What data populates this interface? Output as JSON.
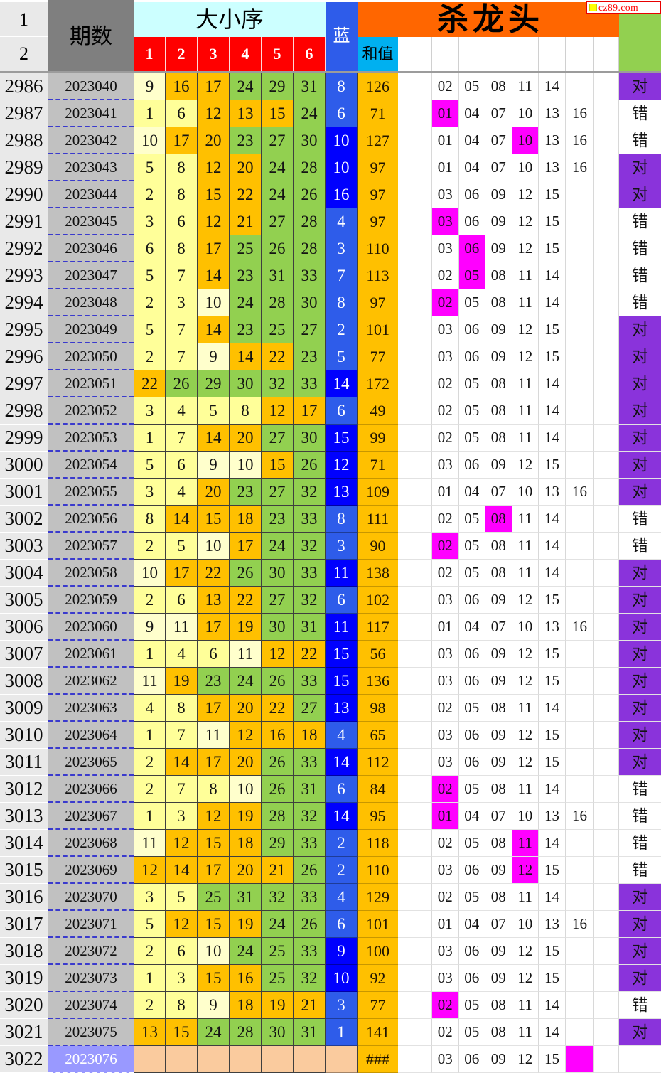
{
  "logo": {
    "text": "cz89.com"
  },
  "header": {
    "corner_row1": "1",
    "corner_row2": "2",
    "period": "期数",
    "size_order": "大小序",
    "ball_cols": [
      "1",
      "2",
      "3",
      "4",
      "5",
      "6"
    ],
    "blue": "蓝",
    "sum": "和值",
    "kill": "杀龙头"
  },
  "labels": {
    "correct": "对",
    "wrong": "错",
    "overflow": "###"
  },
  "colors": {
    "ball_small": "#FFFF99",
    "ball_small2": "#FFFFCC",
    "ball_mid": "#FFC000",
    "ball_big": "#92D050",
    "blue_small": "#2E5CEA",
    "blue_big": "#0000FE",
    "sum_bg": "#FFC000",
    "magenta": "#FF00FF",
    "purple": "#8A33DB",
    "banner_orange": "#FF6600",
    "size_cyan": "#CCFFFF",
    "sum_cyan": "#00B0F0",
    "col_red": "#FF0000",
    "header_gray": "#7F7F7F",
    "period_gray": "#C1C1C1",
    "index_gray": "#E9E9E9",
    "pending_peach": "#FACB9E",
    "pending_period": "#9999FF",
    "green_cell": "#92D050",
    "logo_red": "#EE0000",
    "logo_yellow": "#FFFF00"
  },
  "rows": [
    {
      "idx": "2986",
      "period": "2023040",
      "balls": [
        9,
        16,
        17,
        24,
        29,
        31
      ],
      "blue": 8,
      "sum": "126",
      "kill": [
        "02",
        "05",
        "08",
        "11",
        "14"
      ],
      "hl": -1,
      "result": "对"
    },
    {
      "idx": "2987",
      "period": "2023041",
      "balls": [
        1,
        6,
        12,
        13,
        15,
        24
      ],
      "blue": 6,
      "sum": "71",
      "kill": [
        "01",
        "04",
        "07",
        "10",
        "13",
        "16"
      ],
      "hl": 0,
      "result": "错"
    },
    {
      "idx": "2988",
      "period": "2023042",
      "balls": [
        10,
        17,
        20,
        23,
        27,
        30
      ],
      "blue": 10,
      "sum": "127",
      "kill": [
        "01",
        "04",
        "07",
        "10",
        "13",
        "16"
      ],
      "hl": 3,
      "result": "错"
    },
    {
      "idx": "2989",
      "period": "2023043",
      "balls": [
        5,
        8,
        12,
        20,
        24,
        28
      ],
      "blue": 10,
      "sum": "97",
      "kill": [
        "01",
        "04",
        "07",
        "10",
        "13",
        "16"
      ],
      "hl": -1,
      "result": "对"
    },
    {
      "idx": "2990",
      "period": "2023044",
      "balls": [
        2,
        8,
        15,
        22,
        24,
        26
      ],
      "blue": 16,
      "sum": "97",
      "kill": [
        "03",
        "06",
        "09",
        "12",
        "15"
      ],
      "hl": -1,
      "result": "对"
    },
    {
      "idx": "2991",
      "period": "2023045",
      "balls": [
        3,
        6,
        12,
        21,
        27,
        28
      ],
      "blue": 4,
      "sum": "97",
      "kill": [
        "03",
        "06",
        "09",
        "12",
        "15"
      ],
      "hl": 0,
      "result": "错"
    },
    {
      "idx": "2992",
      "period": "2023046",
      "balls": [
        6,
        8,
        17,
        25,
        26,
        28
      ],
      "blue": 3,
      "sum": "110",
      "kill": [
        "03",
        "06",
        "09",
        "12",
        "15"
      ],
      "hl": 1,
      "result": "错"
    },
    {
      "idx": "2993",
      "period": "2023047",
      "balls": [
        5,
        7,
        14,
        23,
        31,
        33
      ],
      "blue": 7,
      "sum": "113",
      "kill": [
        "02",
        "05",
        "08",
        "11",
        "14"
      ],
      "hl": 1,
      "result": "错"
    },
    {
      "idx": "2994",
      "period": "2023048",
      "balls": [
        2,
        3,
        10,
        24,
        28,
        30
      ],
      "blue": 8,
      "sum": "97",
      "kill": [
        "02",
        "05",
        "08",
        "11",
        "14"
      ],
      "hl": 0,
      "result": "错"
    },
    {
      "idx": "2995",
      "period": "2023049",
      "balls": [
        5,
        7,
        14,
        23,
        25,
        27
      ],
      "blue": 2,
      "sum": "101",
      "kill": [
        "03",
        "06",
        "09",
        "12",
        "15"
      ],
      "hl": -1,
      "result": "对"
    },
    {
      "idx": "2996",
      "period": "2023050",
      "balls": [
        2,
        7,
        9,
        14,
        22,
        23
      ],
      "blue": 5,
      "sum": "77",
      "kill": [
        "03",
        "06",
        "09",
        "12",
        "15"
      ],
      "hl": -1,
      "result": "对"
    },
    {
      "idx": "2997",
      "period": "2023051",
      "balls": [
        22,
        26,
        29,
        30,
        32,
        33
      ],
      "blue": 14,
      "sum": "172",
      "kill": [
        "02",
        "05",
        "08",
        "11",
        "14"
      ],
      "hl": -1,
      "result": "对"
    },
    {
      "idx": "2998",
      "period": "2023052",
      "balls": [
        3,
        4,
        5,
        8,
        12,
        17
      ],
      "blue": 6,
      "sum": "49",
      "kill": [
        "02",
        "05",
        "08",
        "11",
        "14"
      ],
      "hl": -1,
      "result": "对"
    },
    {
      "idx": "2999",
      "period": "2023053",
      "balls": [
        1,
        7,
        14,
        20,
        27,
        30
      ],
      "blue": 15,
      "sum": "99",
      "kill": [
        "02",
        "05",
        "08",
        "11",
        "14"
      ],
      "hl": -1,
      "result": "对"
    },
    {
      "idx": "3000",
      "period": "2023054",
      "balls": [
        5,
        6,
        9,
        10,
        15,
        26
      ],
      "blue": 12,
      "sum": "71",
      "kill": [
        "03",
        "06",
        "09",
        "12",
        "15"
      ],
      "hl": -1,
      "result": "对"
    },
    {
      "idx": "3001",
      "period": "2023055",
      "balls": [
        3,
        4,
        20,
        23,
        27,
        32
      ],
      "blue": 13,
      "sum": "109",
      "kill": [
        "01",
        "04",
        "07",
        "10",
        "13",
        "16"
      ],
      "hl": -1,
      "result": "对"
    },
    {
      "idx": "3002",
      "period": "2023056",
      "balls": [
        8,
        14,
        15,
        18,
        23,
        33
      ],
      "blue": 8,
      "sum": "111",
      "kill": [
        "02",
        "05",
        "08",
        "11",
        "14"
      ],
      "hl": 2,
      "result": "错"
    },
    {
      "idx": "3003",
      "period": "2023057",
      "balls": [
        2,
        5,
        10,
        17,
        24,
        32
      ],
      "blue": 3,
      "sum": "90",
      "kill": [
        "02",
        "05",
        "08",
        "11",
        "14"
      ],
      "hl": 0,
      "result": "错"
    },
    {
      "idx": "3004",
      "period": "2023058",
      "balls": [
        10,
        17,
        22,
        26,
        30,
        33
      ],
      "blue": 11,
      "sum": "138",
      "kill": [
        "02",
        "05",
        "08",
        "11",
        "14"
      ],
      "hl": -1,
      "result": "对"
    },
    {
      "idx": "3005",
      "period": "2023059",
      "balls": [
        2,
        6,
        13,
        22,
        27,
        32
      ],
      "blue": 6,
      "sum": "102",
      "kill": [
        "03",
        "06",
        "09",
        "12",
        "15"
      ],
      "hl": -1,
      "result": "对"
    },
    {
      "idx": "3006",
      "period": "2023060",
      "balls": [
        9,
        11,
        17,
        19,
        30,
        31
      ],
      "blue": 11,
      "sum": "117",
      "kill": [
        "01",
        "04",
        "07",
        "10",
        "13",
        "16"
      ],
      "hl": -1,
      "result": "对"
    },
    {
      "idx": "3007",
      "period": "2023061",
      "balls": [
        1,
        4,
        6,
        11,
        12,
        22
      ],
      "blue": 15,
      "sum": "56",
      "kill": [
        "03",
        "06",
        "09",
        "12",
        "15"
      ],
      "hl": -1,
      "result": "对"
    },
    {
      "idx": "3008",
      "period": "2023062",
      "balls": [
        11,
        19,
        23,
        24,
        26,
        33
      ],
      "blue": 15,
      "sum": "136",
      "kill": [
        "03",
        "06",
        "09",
        "12",
        "15"
      ],
      "hl": -1,
      "result": "对"
    },
    {
      "idx": "3009",
      "period": "2023063",
      "balls": [
        4,
        8,
        17,
        20,
        22,
        27
      ],
      "blue": 13,
      "sum": "98",
      "kill": [
        "02",
        "05",
        "08",
        "11",
        "14"
      ],
      "hl": -1,
      "result": "对"
    },
    {
      "idx": "3010",
      "period": "2023064",
      "balls": [
        1,
        7,
        11,
        12,
        16,
        18
      ],
      "blue": 4,
      "sum": "65",
      "kill": [
        "03",
        "06",
        "09",
        "12",
        "15"
      ],
      "hl": -1,
      "result": "对"
    },
    {
      "idx": "3011",
      "period": "2023065",
      "balls": [
        2,
        14,
        17,
        20,
        26,
        33
      ],
      "blue": 14,
      "sum": "112",
      "kill": [
        "03",
        "06",
        "09",
        "12",
        "15"
      ],
      "hl": -1,
      "result": "对"
    },
    {
      "idx": "3012",
      "period": "2023066",
      "balls": [
        2,
        7,
        8,
        10,
        26,
        31
      ],
      "blue": 6,
      "sum": "84",
      "kill": [
        "02",
        "05",
        "08",
        "11",
        "14"
      ],
      "hl": 0,
      "result": "错"
    },
    {
      "idx": "3013",
      "period": "2023067",
      "balls": [
        1,
        3,
        12,
        19,
        28,
        32
      ],
      "blue": 14,
      "sum": "95",
      "kill": [
        "01",
        "04",
        "07",
        "10",
        "13",
        "16"
      ],
      "hl": 0,
      "result": "错"
    },
    {
      "idx": "3014",
      "period": "2023068",
      "balls": [
        11,
        12,
        15,
        18,
        29,
        33
      ],
      "blue": 2,
      "sum": "118",
      "kill": [
        "02",
        "05",
        "08",
        "11",
        "14"
      ],
      "hl": 3,
      "result": "错"
    },
    {
      "idx": "3015",
      "period": "2023069",
      "balls": [
        12,
        14,
        17,
        20,
        21,
        26
      ],
      "blue": 2,
      "sum": "110",
      "kill": [
        "03",
        "06",
        "09",
        "12",
        "15"
      ],
      "hl": 3,
      "result": "错"
    },
    {
      "idx": "3016",
      "period": "2023070",
      "balls": [
        3,
        5,
        25,
        31,
        32,
        33
      ],
      "blue": 4,
      "sum": "129",
      "kill": [
        "02",
        "05",
        "08",
        "11",
        "14"
      ],
      "hl": -1,
      "result": "对"
    },
    {
      "idx": "3017",
      "period": "2023071",
      "balls": [
        5,
        12,
        15,
        19,
        24,
        26
      ],
      "blue": 6,
      "sum": "101",
      "kill": [
        "01",
        "04",
        "07",
        "10",
        "13",
        "16"
      ],
      "hl": -1,
      "result": "对"
    },
    {
      "idx": "3018",
      "period": "2023072",
      "balls": [
        2,
        6,
        10,
        24,
        25,
        33
      ],
      "blue": 9,
      "sum": "100",
      "kill": [
        "03",
        "06",
        "09",
        "12",
        "15"
      ],
      "hl": -1,
      "result": "对"
    },
    {
      "idx": "3019",
      "period": "2023073",
      "balls": [
        1,
        3,
        15,
        16,
        25,
        32
      ],
      "blue": 10,
      "sum": "92",
      "kill": [
        "03",
        "06",
        "09",
        "12",
        "15"
      ],
      "hl": -1,
      "result": "对"
    },
    {
      "idx": "3020",
      "period": "2023074",
      "balls": [
        2,
        8,
        9,
        18,
        19,
        21
      ],
      "blue": 3,
      "sum": "77",
      "kill": [
        "02",
        "05",
        "08",
        "11",
        "14"
      ],
      "hl": 0,
      "result": "错"
    },
    {
      "idx": "3021",
      "period": "2023075",
      "balls": [
        13,
        15,
        24,
        28,
        30,
        31
      ],
      "blue": 1,
      "sum": "141",
      "kill": [
        "02",
        "05",
        "08",
        "11",
        "14"
      ],
      "hl": -1,
      "result": "对"
    },
    {
      "idx": "3022",
      "period": "2023076",
      "balls": [],
      "blue": null,
      "sum": "###",
      "kill": [
        "03",
        "06",
        "09",
        "12",
        "15",
        ""
      ],
      "hl": 5,
      "result": "",
      "pending": true
    }
  ]
}
